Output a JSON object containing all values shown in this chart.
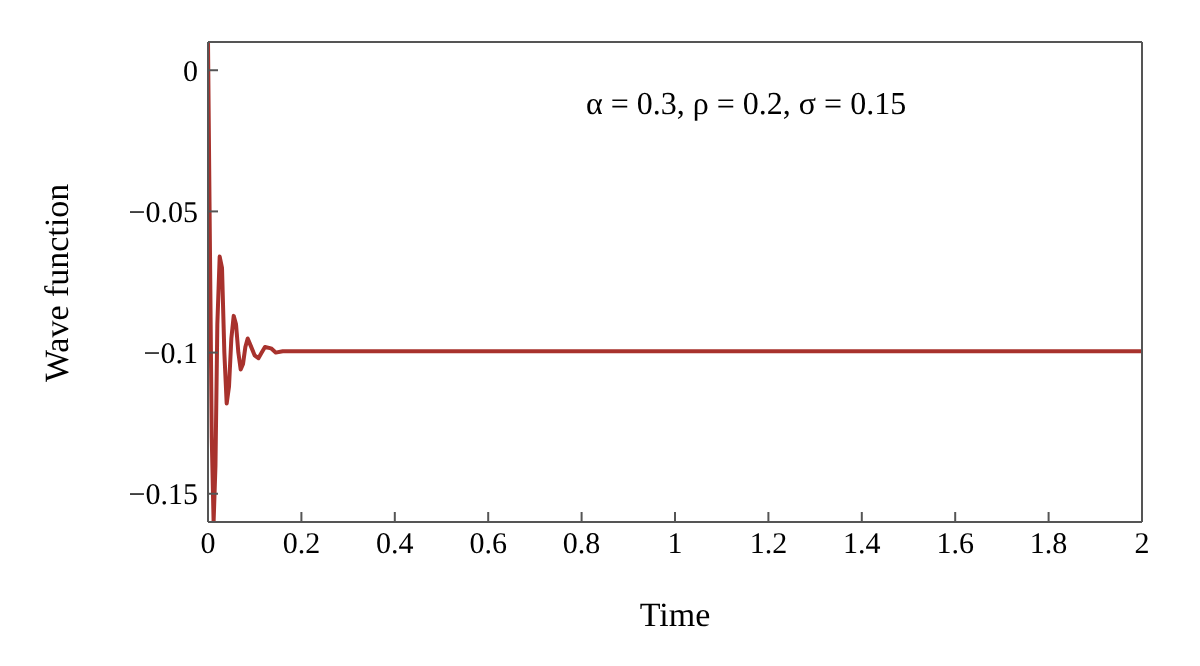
{
  "chart_data": {
    "type": "line",
    "xlabel": "Time",
    "ylabel": "Wave function",
    "annotations": [
      "α = 0.3, ρ = 0.2, σ = 0.15"
    ],
    "x": [
      0,
      0.004,
      0.008,
      0.012,
      0.016,
      0.02,
      0.025,
      0.03,
      0.035,
      0.04,
      0.045,
      0.05,
      0.055,
      0.06,
      0.065,
      0.07,
      0.075,
      0.08,
      0.085,
      0.09,
      0.1,
      0.108,
      0.115,
      0.122,
      0.135,
      0.145,
      0.16,
      0.2,
      0.4,
      1,
      2
    ],
    "series": [
      {
        "color": "#a8322d",
        "values": [
          0.01,
          -0.06,
          -0.13,
          -0.16,
          -0.14,
          -0.09,
          -0.066,
          -0.07,
          -0.1,
          -0.118,
          -0.112,
          -0.095,
          -0.087,
          -0.09,
          -0.1,
          -0.106,
          -0.104,
          -0.098,
          -0.095,
          -0.097,
          -0.101,
          -0.102,
          -0.1,
          -0.098,
          -0.0985,
          -0.1,
          -0.0995,
          -0.0995,
          -0.0995,
          -0.0995,
          -0.0995
        ]
      }
    ],
    "xlim": [
      0,
      2
    ],
    "xticks": [
      0,
      0.2,
      0.4,
      0.6,
      0.8,
      1,
      1.2,
      1.4,
      1.6,
      1.8,
      2
    ],
    "ylim": [
      -0.16,
      0.01
    ],
    "yticks": [
      0,
      -0.05,
      -0.1,
      -0.15
    ],
    "grid": false,
    "marker": "none",
    "line_style": "solid"
  }
}
